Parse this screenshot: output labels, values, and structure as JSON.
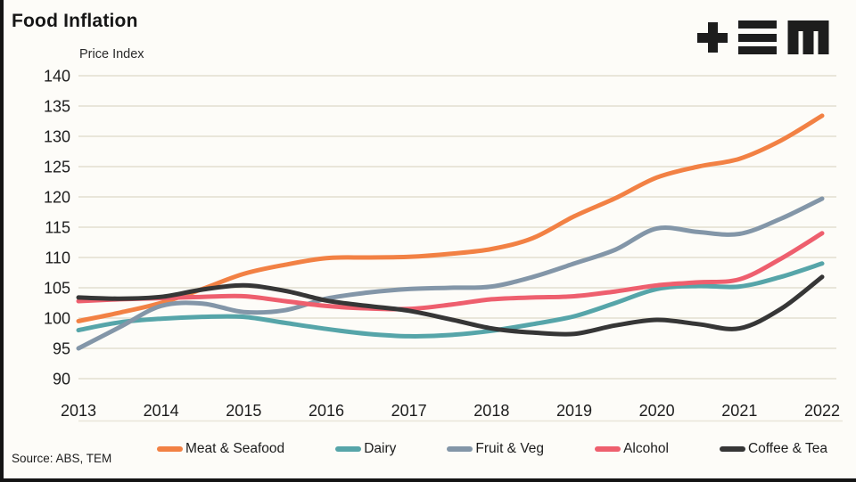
{
  "header": {
    "title": "Food Inflation"
  },
  "footer": {
    "source": "Source: ABS, TEM"
  },
  "logo": {
    "name": "TEM",
    "ink_color": "#1d1d1d"
  },
  "colors": {
    "background": "#FDFCF8",
    "gridline": "#E9E6DA",
    "frame_edge": "#141414",
    "meat_seafood": "#F28144",
    "dairy": "#56A5A9",
    "fruit_veg": "#8396A8",
    "alcohol": "#EE5F6E",
    "coffee_tea": "#363636"
  },
  "chart_data": {
    "type": "line",
    "title": "Food Inflation",
    "xlabel": "",
    "ylabel": "Price Index",
    "ylim": [
      90,
      140
    ],
    "ytick_step": 5,
    "grid": "horizontal",
    "legend_position": "bottom",
    "xticks": [
      2013,
      2014,
      2015,
      2016,
      2017,
      2018,
      2019,
      2020,
      2021,
      2022
    ],
    "xtick_labels": [
      "2013",
      "2014",
      "2015",
      "2016",
      "2017",
      "2018",
      "2019",
      "2020",
      "2021",
      "2022"
    ],
    "x": [
      2013,
      2013.5,
      2014,
      2014.5,
      2015,
      2015.5,
      2016,
      2016.5,
      2017,
      2017.5,
      2018,
      2018.5,
      2019,
      2019.5,
      2020,
      2020.5,
      2021,
      2021.5,
      2022
    ],
    "series": [
      {
        "name": "Meat & Seafood",
        "color": "#F28144",
        "values": [
          99.5,
          100.9,
          102.5,
          104.8,
          107.3,
          108.8,
          109.9,
          110.0,
          110.1,
          110.6,
          111.4,
          113.2,
          116.8,
          119.8,
          123.2,
          125.0,
          126.3,
          129.3,
          133.4
        ]
      },
      {
        "name": "Dairy",
        "color": "#56A5A9",
        "values": [
          98.0,
          99.3,
          99.9,
          100.2,
          100.2,
          99.2,
          98.2,
          97.4,
          97.0,
          97.2,
          97.9,
          99.0,
          100.3,
          102.5,
          104.8,
          105.3,
          105.2,
          106.8,
          109.0
        ]
      },
      {
        "name": "Fruit & Veg",
        "color": "#8396A8",
        "values": [
          95.0,
          98.5,
          102.0,
          102.4,
          101.0,
          101.3,
          103.2,
          104.2,
          104.8,
          105.0,
          105.2,
          106.8,
          109.0,
          111.3,
          114.8,
          114.2,
          113.9,
          116.4,
          119.7
        ]
      },
      {
        "name": "Alcohol",
        "color": "#EE5F6E",
        "values": [
          102.8,
          103.1,
          103.3,
          103.5,
          103.6,
          102.8,
          102.0,
          101.6,
          101.5,
          102.2,
          103.1,
          103.4,
          103.6,
          104.4,
          105.4,
          105.9,
          106.4,
          109.8,
          114.0
        ]
      },
      {
        "name": "Coffee & Tea",
        "color": "#363636",
        "values": [
          103.4,
          103.2,
          103.5,
          104.7,
          105.4,
          104.5,
          102.9,
          102.0,
          101.2,
          99.8,
          98.3,
          97.6,
          97.4,
          98.8,
          99.7,
          99.0,
          98.3,
          101.5,
          106.8
        ]
      }
    ]
  }
}
